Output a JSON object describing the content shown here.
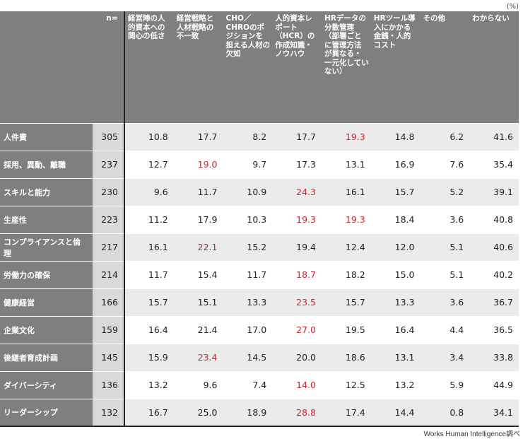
{
  "unit_label": "(%)",
  "source": "Works Human Intelligence調べ",
  "chart_data": {
    "type": "table",
    "n_header": "n=",
    "columns": [
      "経営陣の人的資本への関心の低さ",
      "経営戦略と人材戦略の不一致",
      "CHO／CHROのポジションを担える人材の欠如",
      "人的資本レポート（HCR）の作成知識・ノウハウ",
      "HRデータの分散管理（部署ごとに管理方法が異なる・一元化していない）",
      "HRツール導入にかかる金銭・人的コスト",
      "その他",
      "わからない"
    ],
    "highlight_color": "#d0262a",
    "rows": [
      {
        "label": "人件費",
        "n": "305",
        "values": [
          "10.8",
          "17.7",
          "8.2",
          "17.7",
          "19.3",
          "14.8",
          "6.2",
          "41.6"
        ],
        "highlight": [
          4
        ]
      },
      {
        "label": "採用、異動、離職",
        "n": "237",
        "values": [
          "12.7",
          "19.0",
          "9.7",
          "17.3",
          "13.1",
          "16.9",
          "7.6",
          "35.4"
        ],
        "highlight": [
          1
        ]
      },
      {
        "label": "スキルと能力",
        "n": "230",
        "values": [
          "9.6",
          "11.7",
          "10.9",
          "24.3",
          "16.1",
          "15.7",
          "5.2",
          "39.1"
        ],
        "highlight": [
          3
        ]
      },
      {
        "label": "生産性",
        "n": "223",
        "values": [
          "11.2",
          "17.9",
          "10.3",
          "19.3",
          "19.3",
          "18.4",
          "3.6",
          "40.8"
        ],
        "highlight": [
          3,
          4
        ]
      },
      {
        "label": "コンプライアンスと倫理",
        "n": "217",
        "values": [
          "16.1",
          "22.1",
          "15.2",
          "19.4",
          "12.4",
          "12.0",
          "5.1",
          "40.6"
        ],
        "highlight": [
          1
        ]
      },
      {
        "label": "労働力の確保",
        "n": "214",
        "values": [
          "11.7",
          "15.4",
          "11.7",
          "18.7",
          "18.2",
          "15.0",
          "5.1",
          "40.2"
        ],
        "highlight": [
          3
        ]
      },
      {
        "label": "健康経営",
        "n": "166",
        "values": [
          "15.7",
          "15.1",
          "13.3",
          "23.5",
          "15.7",
          "13.3",
          "3.6",
          "36.7"
        ],
        "highlight": [
          3
        ]
      },
      {
        "label": "企業文化",
        "n": "159",
        "values": [
          "16.4",
          "21.4",
          "17.0",
          "27.0",
          "19.5",
          "16.4",
          "4.4",
          "36.5"
        ],
        "highlight": [
          3
        ]
      },
      {
        "label": "後継者育成計画",
        "n": "145",
        "values": [
          "15.9",
          "23.4",
          "14.5",
          "20.0",
          "18.6",
          "13.1",
          "3.4",
          "33.8"
        ],
        "highlight": [
          1
        ]
      },
      {
        "label": "ダイバーシティ",
        "n": "136",
        "values": [
          "13.2",
          "9.6",
          "7.4",
          "14.0",
          "12.5",
          "13.2",
          "5.9",
          "44.9"
        ],
        "highlight": [
          3
        ]
      },
      {
        "label": "リーダーシップ",
        "n": "132",
        "values": [
          "16.7",
          "25.0",
          "18.9",
          "28.8",
          "17.4",
          "14.4",
          "0.8",
          "34.1"
        ],
        "highlight": [
          3
        ]
      }
    ]
  }
}
